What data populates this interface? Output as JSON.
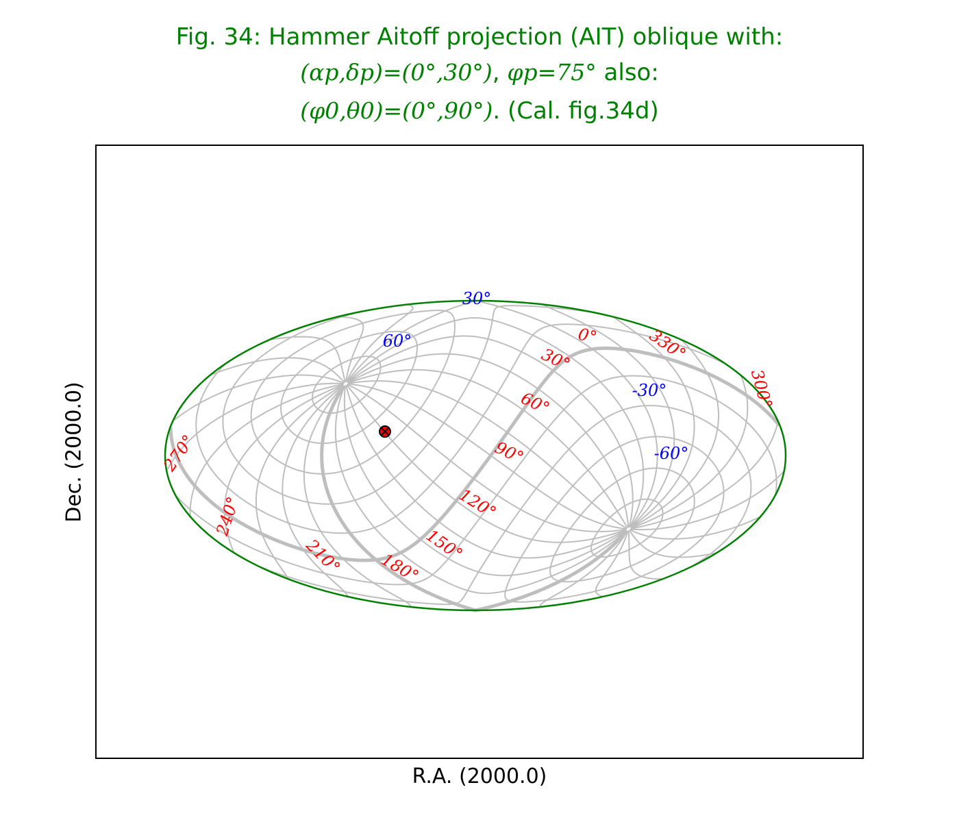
{
  "title": {
    "line1": "Fig. 34: Hammer Aitoff projection (AIT) oblique with:",
    "line2_math_a": "(αp,δp)=(0°,30°)",
    "line2_sep": ", ",
    "line2_math_b": "φp=75°",
    "line2_text": " also:",
    "line3_math": "(φ0,θ0)=(0°,90°)",
    "line3_text": ". (Cal. fig.34d)"
  },
  "xlabel": "R.A. (2000.0)",
  "ylabel": "Dec. (2000.0)",
  "colors": {
    "title": "#008000",
    "border": "#008000",
    "graticule": "#bebebe",
    "ra_labels": "#ff0000",
    "dec_labels": "#0000ff",
    "marker_fill": "#ff0000",
    "marker_edge": "#000000"
  },
  "ra_labels": [
    "0°",
    "30°",
    "60°",
    "90°",
    "120°",
    "150°",
    "180°",
    "210°",
    "240°",
    "270°",
    "300°",
    "330°"
  ],
  "dec_labels": [
    "30°",
    "60°",
    "-30°",
    "-60°"
  ],
  "marker": {
    "name": "projection-center-marker",
    "symbol": "x-circle"
  }
}
